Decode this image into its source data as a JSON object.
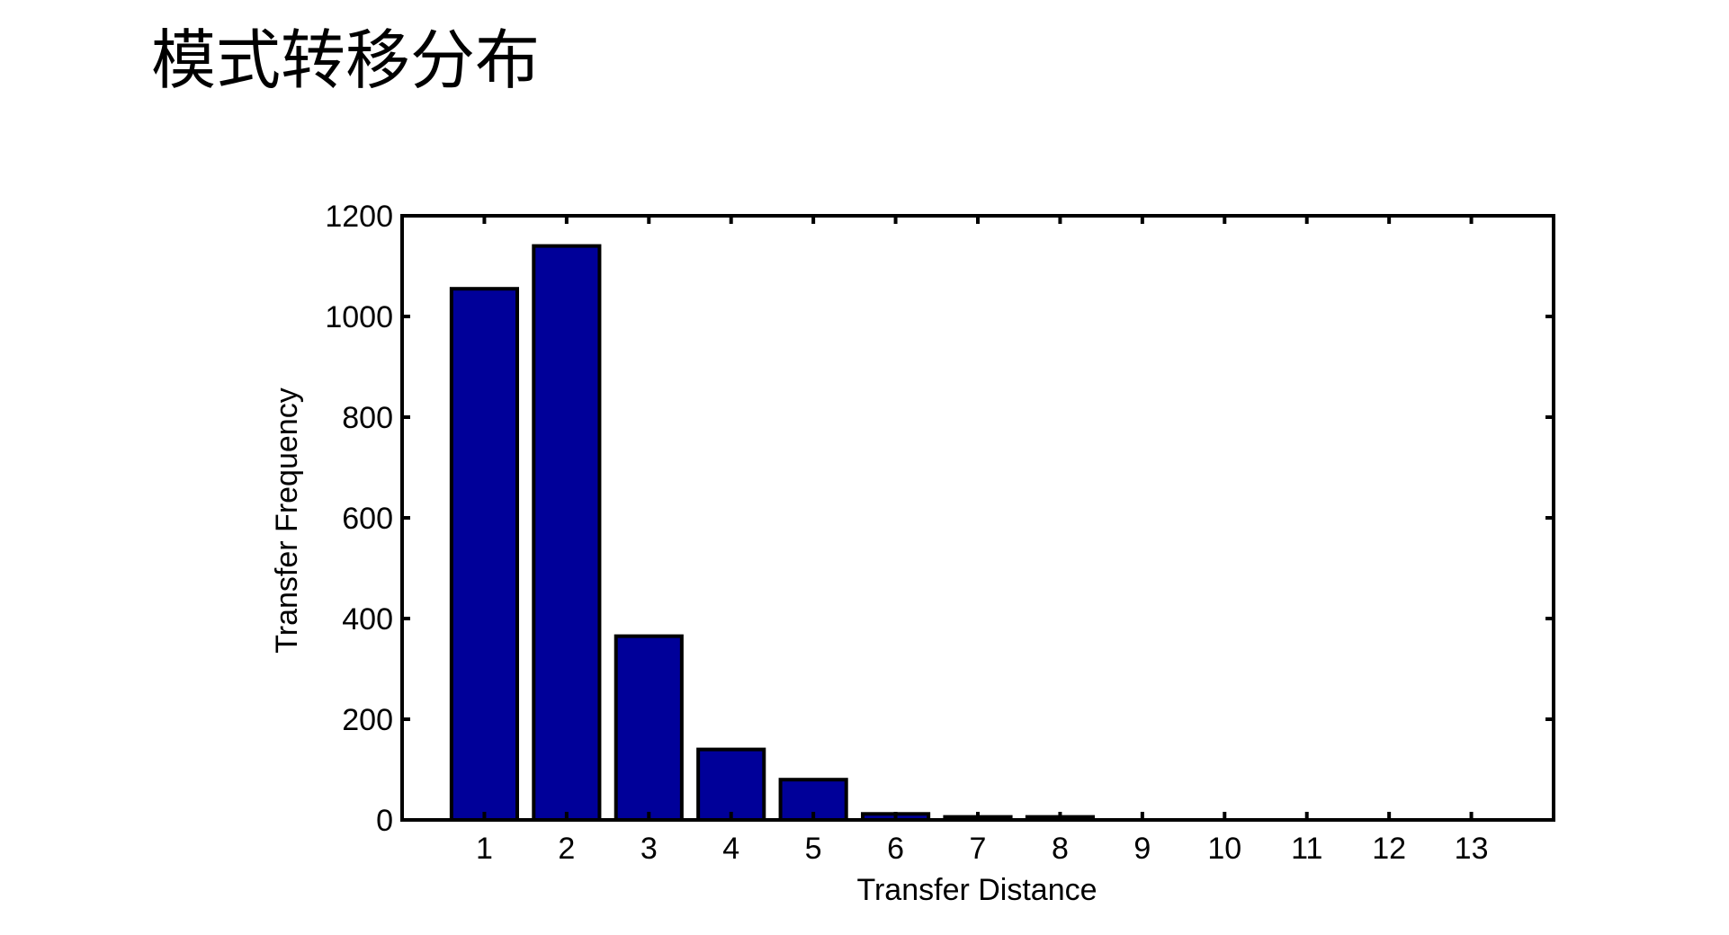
{
  "slide": {
    "title": "模式转移分布"
  },
  "chart_data": {
    "type": "bar",
    "title": "",
    "xlabel": "Transfer Distance",
    "ylabel": "Transfer Frequency",
    "categories": [
      "1",
      "2",
      "3",
      "4",
      "5",
      "6",
      "7",
      "8",
      "9",
      "10",
      "11",
      "12",
      "13"
    ],
    "values": [
      1055,
      1140,
      365,
      140,
      80,
      12,
      6,
      6,
      0,
      0,
      0,
      0,
      0
    ],
    "ylim": [
      0,
      1200
    ],
    "yticks": [
      0,
      200,
      400,
      600,
      800,
      1000,
      1200
    ],
    "grid": false,
    "bar_color": "#000099",
    "edge_color": "#000000"
  }
}
